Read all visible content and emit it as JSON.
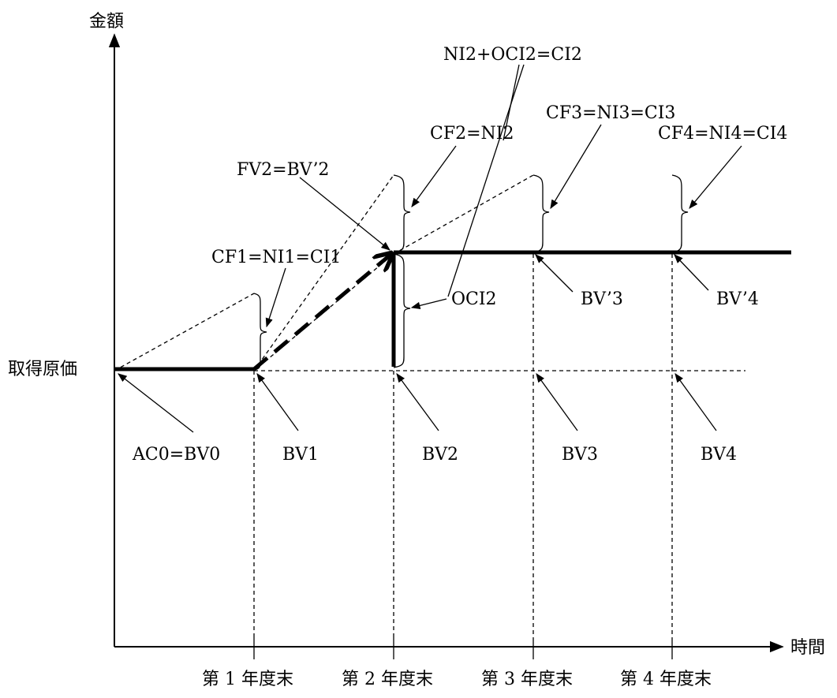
{
  "axes": {
    "y_label": "金額",
    "x_label": "時間",
    "origin_label": "取得原価"
  },
  "periods": [
    {
      "id": "p1",
      "label": "第 1 年度末"
    },
    {
      "id": "p2",
      "label": "第 2 年度末"
    },
    {
      "id": "p3",
      "label": "第 3 年度末"
    },
    {
      "id": "p4",
      "label": "第 4 年度末"
    }
  ],
  "labels": {
    "ac0": "AC0=BV0",
    "bv1": "BV1",
    "bv2": "BV2",
    "bv3": "BV3",
    "bv4": "BV4",
    "cf1": "CF1=NI1=CI1",
    "fv2": "FV2=BV’2",
    "cf2": "CF2=NI2",
    "ni2_oci2": "NI2+OCI2=CI2",
    "oci2": "OCI2",
    "cf3": "CF3=NI3=CI3",
    "bv3p": "BV’3",
    "cf4": "CF4=NI4=CI4",
    "bv4p": "BV’4"
  }
}
